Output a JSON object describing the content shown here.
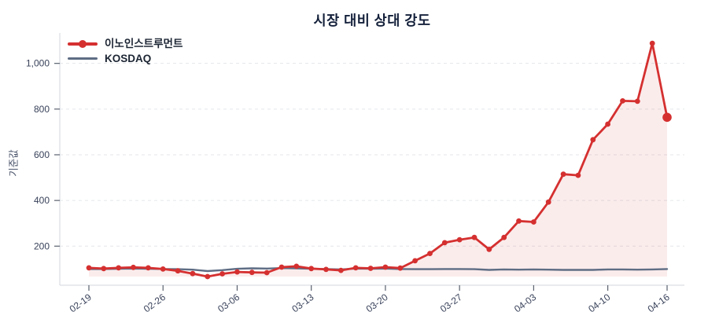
{
  "title": "시장 대비 상대 강도",
  "chart_data": {
    "type": "line",
    "title": "시장 대비 상대 강도",
    "xlabel": "",
    "ylabel": "기준값",
    "grid": "horizontal-dashed",
    "legend_position": "top-left",
    "ylim": [
      29,
      1133
    ],
    "y_ticks": [
      200,
      400,
      600,
      800,
      1000
    ],
    "y_tick_labels": [
      "200",
      "400",
      "600",
      "800",
      "1,000"
    ],
    "x_tick_labels": [
      "02-19",
      "02-26",
      "03-06",
      "03-13",
      "03-20",
      "03-27",
      "04-03",
      "04-10",
      "04-16"
    ],
    "x_tick_indices": [
      0,
      5,
      10,
      15,
      20,
      25,
      30,
      35,
      39
    ],
    "series": [
      {
        "name": "이노인스트루먼트",
        "color": "#d53030",
        "area_fill": "rgba(211,47,47,0.09)",
        "markers": true,
        "last_point_emphasis": true,
        "values": [
          105,
          102,
          105,
          107,
          105,
          100,
          92,
          80,
          67,
          79,
          87,
          85,
          84,
          108,
          112,
          102,
          98,
          94,
          105,
          103,
          108,
          104,
          136,
          168,
          215,
          228,
          238,
          186,
          238,
          310,
          306,
          393,
          515,
          510,
          666,
          734,
          836,
          834,
          1088,
          764
        ]
      },
      {
        "name": "KOSDAQ",
        "color": "#5e6d84",
        "area_fill": null,
        "markers": false,
        "last_point_emphasis": false,
        "values": [
          100,
          100,
          101,
          102,
          101,
          100,
          99,
          97,
          91,
          95,
          101,
          103,
          102,
          104,
          103,
          101,
          100,
          98,
          102,
          101,
          102,
          100,
          99,
          99,
          100,
          100,
          99,
          96,
          98,
          97,
          98,
          97,
          96,
          96,
          96,
          98,
          98,
          97,
          98,
          100
        ]
      }
    ],
    "colors": {
      "grid": "#e4e6ea",
      "axis_line": "#d9dde3",
      "tick_mark": "#59606d",
      "tick_label": "#39425a",
      "title": "#14203a"
    }
  }
}
